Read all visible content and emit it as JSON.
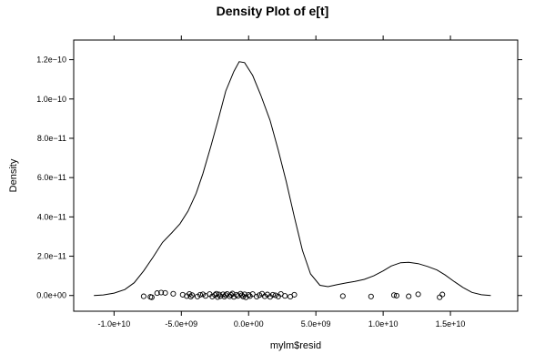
{
  "chart_data": {
    "type": "line",
    "title": "Density Plot of e[t]",
    "xlabel": "mylm$resid",
    "ylabel": "Density",
    "xlim": [
      -13000000000,
      20000000000
    ],
    "ylim": [
      -8e-12,
      1.3e-10
    ],
    "x_ticks": [
      {
        "value": -10000000000,
        "label": "-1.0e+10"
      },
      {
        "value": -5000000000,
        "label": "-5.0e+09"
      },
      {
        "value": 0,
        "label": "0.0e+00"
      },
      {
        "value": 5000000000,
        "label": "5.0e+09"
      },
      {
        "value": 10000000000,
        "label": "1.0e+10"
      },
      {
        "value": 15000000000,
        "label": "1.5e+10"
      }
    ],
    "y_ticks": [
      {
        "value": 0,
        "label": "0.0e+00"
      },
      {
        "value": 2e-11,
        "label": "2.0e−11"
      },
      {
        "value": 4e-11,
        "label": "4.0e−11"
      },
      {
        "value": 6e-11,
        "label": "6.0e−11"
      },
      {
        "value": 8e-11,
        "label": "8.0e−11"
      },
      {
        "value": 1e-10,
        "label": "1.0e−10"
      },
      {
        "value": 1.2e-10,
        "label": "1.2e−10"
      }
    ],
    "density_curve": {
      "x": [
        -11500000000,
        -10800000000,
        -10000000000,
        -9200000000,
        -8500000000,
        -7800000000,
        -7100000000,
        -6400000000,
        -5700000000,
        -5100000000,
        -4500000000,
        -3900000000,
        -3400000000,
        -2800000000,
        -2200000000,
        -1700000000,
        -1100000000,
        -700000000,
        -300000000,
        300000000,
        900000000,
        1600000000,
        2200000000,
        2800000000,
        3400000000,
        4000000000,
        4600000000,
        5300000000,
        5900000000,
        6600000000,
        7300000000,
        7900000000,
        8600000000,
        9300000000,
        10000000000,
        10600000000,
        11300000000,
        11900000000,
        12600000000,
        13300000000,
        14000000000,
        14600000000,
        15300000000,
        16000000000,
        16600000000,
        17300000000,
        18000000000
      ],
      "y": [
        0,
        3e-13,
        1.2e-12,
        3e-12,
        6.5e-12,
        1.25e-11,
        1.95e-11,
        2.7e-11,
        3.2e-11,
        3.65e-11,
        4.3e-11,
        5.2e-11,
        6.2e-11,
        7.6e-11,
        9.1e-11,
        1.04e-10,
        1.14e-10,
        1.19e-10,
        1.185e-10,
        1.12e-10,
        1.02e-10,
        8.9e-11,
        7.4e-11,
        5.8e-11,
        4e-11,
        2.3e-11,
        1.1e-11,
        5.2e-12,
        4.5e-12,
        5.5e-12,
        6.5e-12,
        7.2e-12,
        8.2e-12,
        1e-11,
        1.25e-11,
        1.5e-11,
        1.67e-11,
        1.69e-11,
        1.62e-11,
        1.48e-11,
        1.3e-11,
        1.05e-11,
        7e-12,
        3.8e-12,
        1.6e-12,
        4e-13,
        0
      ],
      "color": "#000000"
    },
    "rug_points": {
      "x": [
        -7800000000,
        -7300000000,
        -7200000000,
        -6800000000,
        -6500000000,
        -6200000000,
        -5600000000,
        -4900000000,
        -4600000000,
        -4400000000,
        -4300000000,
        -4200000000,
        -3800000000,
        -3600000000,
        -3400000000,
        -3200000000,
        -2900000000,
        -2700000000,
        -2500000000,
        -2400000000,
        -2300000000,
        -2200000000,
        -2100000000,
        -1900000000,
        -1800000000,
        -1700000000,
        -1600000000,
        -1400000000,
        -1300000000,
        -1200000000,
        -1100000000,
        -900000000,
        -800000000,
        -600000000,
        -500000000,
        -400000000,
        -300000000,
        -200000000,
        0,
        100000000,
        300000000,
        600000000,
        800000000,
        1000000000,
        1200000000,
        1400000000,
        1600000000,
        1800000000,
        2000000000,
        2200000000,
        2400000000,
        2700000000,
        3100000000,
        3400000000,
        7000000000,
        9100000000,
        10800000000,
        11000000000,
        11900000000,
        12600000000,
        14200000000,
        14400000000
      ],
      "y": [
        -4e-13,
        -7e-13,
        -9e-13,
        1.2e-12,
        1.5e-12,
        1.3e-12,
        9e-13,
        4e-13,
        -3e-13,
        8e-13,
        -6e-13,
        2e-13,
        -5e-13,
        4e-13,
        6e-13,
        -2e-13,
        7e-13,
        -5e-13,
        3e-13,
        9e-13,
        -8e-13,
        5e-13,
        -3e-13,
        6e-13,
        -6e-13,
        2e-13,
        8e-13,
        -4e-13,
        3e-13,
        1e-12,
        -7e-13,
        4e-13,
        -2e-13,
        9e-13,
        1e-13,
        -5e-13,
        6e-13,
        -9e-13,
        3e-13,
        -3e-13,
        7e-13,
        -6e-13,
        2e-13,
        9e-13,
        -4e-13,
        5e-13,
        -7e-13,
        4e-13,
        1e-13,
        -5e-13,
        8e-13,
        -2e-13,
        -6e-13,
        4e-13,
        -3e-13,
        -5e-13,
        2e-13,
        -1e-13,
        -4e-13,
        6e-13,
        -9e-13,
        5e-13
      ]
    },
    "grid": false,
    "legend": "none"
  }
}
